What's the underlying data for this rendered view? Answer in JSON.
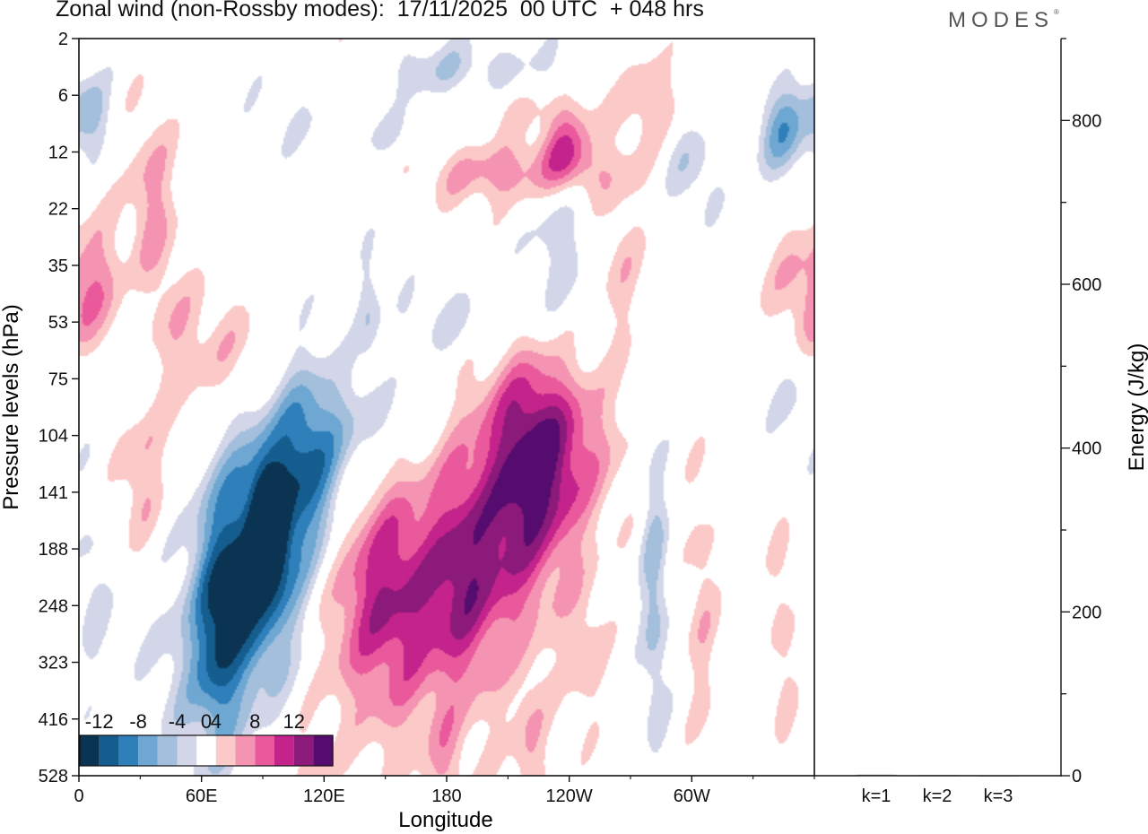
{
  "title": "Zonal wind (non-Rossby modes):  17/11/2025  00 UTC  + 048 hrs",
  "brand": "MODES",
  "brand_mark": "®",
  "colors": {
    "levels": [
      "#0b3352",
      "#155d8f",
      "#2e7fba",
      "#6ea7d2",
      "#a3bfdc",
      "#d2d6e8",
      "#ffffff",
      "#fbc9c7",
      "#f594b2",
      "#e9599b",
      "#c4238b",
      "#8b1a7a",
      "#560b6e"
    ],
    "axis": "#111111"
  },
  "chart_data": [
    {
      "type": "heatmap",
      "title": "Zonal wind (non-Rossby modes)",
      "xlabel": "Longitude",
      "ylabel": "Pressure levels (hPa)",
      "x_ticks": [
        "0",
        "60E",
        "120E",
        "180",
        "120W",
        "60W"
      ],
      "x_tick_lon": [
        0,
        60,
        120,
        180,
        240,
        300
      ],
      "xlim": [
        0,
        360
      ],
      "y_ticks": [
        "2",
        "6",
        "12",
        "22",
        "35",
        "53",
        "75",
        "104",
        "141",
        "188",
        "248",
        "323",
        "416",
        "528"
      ],
      "colorbar": {
        "ticks": [
          "-12",
          "-8",
          "-4",
          "0",
          "4",
          "8",
          "12"
        ],
        "bounds": [
          -14,
          -12,
          -10,
          -8,
          -6,
          -4,
          -2,
          2,
          4,
          6,
          8,
          10,
          12,
          14
        ]
      },
      "features": [
        {
          "lon": 93,
          "lev": 8.6,
          "value": -13.5,
          "sx": 5,
          "sy": 0.6
        },
        {
          "lon": 88,
          "lev": 9.4,
          "value": -10,
          "sx": 14,
          "sy": 1.4
        },
        {
          "lon": 112,
          "lev": 7.5,
          "value": -7,
          "sx": 12,
          "sy": 1.1
        },
        {
          "lon": 68,
          "lev": 10.4,
          "value": -7,
          "sx": 8,
          "sy": 1.4
        },
        {
          "lon": 100,
          "lev": 8.2,
          "value": -5,
          "sx": 28,
          "sy": 1.6
        },
        {
          "lon": 60,
          "lev": 11.2,
          "value": -4,
          "sx": 18,
          "sy": 1.4
        },
        {
          "lon": 6,
          "lev": 9.8,
          "value": -2.8,
          "sx": 6,
          "sy": 1.2
        },
        {
          "lon": 27,
          "lev": 5.0,
          "value": -3.5,
          "sx": 9,
          "sy": 1.2
        },
        {
          "lon": 140,
          "lev": 6.8,
          "value": -2.8,
          "sx": 16,
          "sy": 0.6
        },
        {
          "lon": 142,
          "lev": 4.8,
          "value": -2.8,
          "sx": 4,
          "sy": 0.8
        },
        {
          "lon": 165,
          "lev": 1.5,
          "value": -4,
          "sx": 45,
          "sy": 0.5
        },
        {
          "lon": 175,
          "lev": 0.6,
          "value": -4,
          "sx": 45,
          "sy": 0.4
        },
        {
          "lon": 5,
          "lev": 1.3,
          "value": -5,
          "sx": 7,
          "sy": 0.5
        },
        {
          "lon": 345,
          "lev": 1.6,
          "value": -7,
          "sx": 9,
          "sy": 0.6
        },
        {
          "lon": 235,
          "lev": 3.3,
          "value": -3.5,
          "sx": 12,
          "sy": 1.4
        },
        {
          "lon": 300,
          "lev": 2.3,
          "value": -4,
          "sx": 10,
          "sy": 0.6
        },
        {
          "lon": 282,
          "lev": 9.8,
          "value": -5,
          "sx": 5,
          "sy": 2.0
        },
        {
          "lon": 350,
          "lev": 6.2,
          "value": -2.6,
          "sx": 10,
          "sy": 0.8
        },
        {
          "lon": 183,
          "lev": 5.0,
          "value": -2.6,
          "sx": 25,
          "sy": 0.5
        },
        {
          "lon": 200,
          "lev": 1.2,
          "value": 4.5,
          "sx": 45,
          "sy": 0.4
        },
        {
          "lon": 215,
          "lev": 2.3,
          "value": 6,
          "sx": 38,
          "sy": 0.45
        },
        {
          "lon": 238,
          "lev": 1.9,
          "value": 7,
          "sx": 9,
          "sy": 0.5
        },
        {
          "lon": 150,
          "lev": 9.7,
          "value": 8,
          "sx": 22,
          "sy": 1.4
        },
        {
          "lon": 188,
          "lev": 9.4,
          "value": 6,
          "sx": 11,
          "sy": 1.3
        },
        {
          "lon": 170,
          "lev": 10.3,
          "value": 3.2,
          "sx": 42,
          "sy": 2.2
        },
        {
          "lon": 210,
          "lev": 7.5,
          "value": 5,
          "sx": 16,
          "sy": 1.4
        },
        {
          "lon": 225,
          "lev": 7.6,
          "value": 7,
          "sx": 14,
          "sy": 1.4
        },
        {
          "lon": 240,
          "lev": 7.2,
          "value": 5,
          "sx": 20,
          "sy": 1.1
        },
        {
          "lon": 208,
          "lev": 9.4,
          "value": 3,
          "sx": 12,
          "sy": 1.0
        },
        {
          "lon": 35,
          "lev": 3.1,
          "value": 5,
          "sx": 9,
          "sy": 1.4
        },
        {
          "lon": 30,
          "lev": 7.6,
          "value": 4.5,
          "sx": 9,
          "sy": 1.0
        },
        {
          "lon": 48,
          "lev": 5.5,
          "value": 3.2,
          "sx": 14,
          "sy": 1.0
        },
        {
          "lon": 78,
          "lev": 5.6,
          "value": 3.2,
          "sx": 14,
          "sy": 0.8
        },
        {
          "lon": 140,
          "lev": 0.5,
          "value": 3.8,
          "sx": 12,
          "sy": 0.5
        },
        {
          "lon": 265,
          "lev": 4.0,
          "value": 3.2,
          "sx": 8,
          "sy": 1.0
        },
        {
          "lon": 280,
          "lev": 1.0,
          "value": 3.5,
          "sx": 10,
          "sy": 0.6
        },
        {
          "lon": 305,
          "lev": 10.0,
          "value": 3.2,
          "sx": 6,
          "sy": 1.8
        },
        {
          "lon": 357,
          "lev": 4.5,
          "value": 5,
          "sx": 14,
          "sy": 0.9
        },
        {
          "lon": 345,
          "lev": 10.5,
          "value": 3.0,
          "sx": 5,
          "sy": 1.6
        },
        {
          "lon": 113,
          "lev": 13.1,
          "value": 2.6,
          "sx": 6,
          "sy": 0.7
        },
        {
          "lon": 221,
          "lev": 12.6,
          "value": 3.0,
          "sx": 6,
          "sy": 1.0
        },
        {
          "lon": 180,
          "lev": 12.8,
          "value": 2.6,
          "sx": 6,
          "sy": 0.6
        },
        {
          "lon": 248,
          "lev": 10.8,
          "value": 3,
          "sx": 7,
          "sy": 0.9
        },
        {
          "lon": 15,
          "lev": 4.5,
          "value": 3.2,
          "sx": 9,
          "sy": 1.0
        }
      ]
    },
    {
      "type": "bar",
      "categories": [
        "k=1",
        "k=2",
        "k=3"
      ],
      "values": [
        1.2,
        0.9,
        0.7
      ],
      "ylabel": "Energy (J/kg)",
      "y_ticks": [
        "0",
        "200",
        "400",
        "600",
        "800"
      ],
      "ylim": [
        0,
        900
      ]
    }
  ]
}
